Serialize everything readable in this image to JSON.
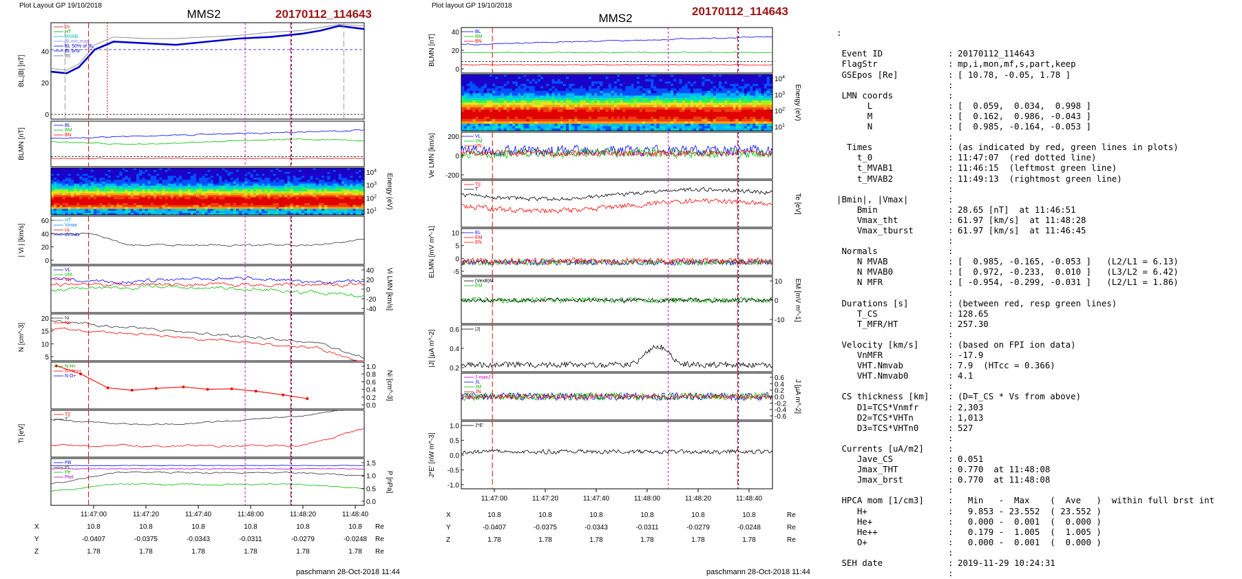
{
  "left_figure": {
    "header": "Plot Layout GP 19/10/2018",
    "spacecraft": "MMS2",
    "event": "20170112_114643",
    "footer": "paschmann 28-Oct-2018 11:44",
    "time_ticks": [
      "11:47:00",
      "11:47:20",
      "11:47:40",
      "11:48:00",
      "11:48:20",
      "11:48:40"
    ],
    "ephemeris": {
      "rows": [
        {
          "name": "X",
          "values": [
            "10.8",
            "10.8",
            "10.8",
            "10.8",
            "10.8",
            "10.8"
          ],
          "unit": "Re"
        },
        {
          "name": "Y",
          "values": [
            "-0.0407",
            "-0.0375",
            "-0.0343",
            "-0.0311",
            "-0.0279",
            "-0.0248"
          ],
          "unit": "Re"
        },
        {
          "name": "Z",
          "values": [
            "1.78",
            "1.78",
            "1.78",
            "1.78",
            "1.78",
            "1.78"
          ],
          "unit": "Re"
        }
      ]
    }
  },
  "right_figure": {
    "header": "Plot layout GP 19/10/2018",
    "spacecraft": "MMS2",
    "event": "20170112_114643",
    "footer": "paschmann 28-Oct-2018 11:44",
    "time_ticks": [
      "11:47:00",
      "11:47:20",
      "11:47:40",
      "11:48:00",
      "11:48:20",
      "11:48:40"
    ],
    "ephemeris": {
      "rows": [
        {
          "name": "X",
          "values": [
            "10.8",
            "10.8",
            "10.8",
            "10.8",
            "10.8",
            "10.8"
          ],
          "unit": "Re"
        },
        {
          "name": "Y",
          "values": [
            "-0.0407",
            "-0.0375",
            "-0.0343",
            "-0.0311",
            "-0.0279",
            "-0.0248"
          ],
          "unit": "Re"
        },
        {
          "name": "Z",
          "values": [
            "1.78",
            "1.78",
            "1.78",
            "1.78",
            "1.78",
            "1.78"
          ],
          "unit": "Re"
        }
      ]
    }
  },
  "chart_data": [
    {
      "id": "L1",
      "type": "line",
      "ylabel": "BL,|B| [nT]",
      "ylim": [
        -3,
        58
      ],
      "yticks": [
        "0",
        "20",
        "40"
      ],
      "legend": [
        "cs",
        "HT",
        "MVAB",
        "BLmin,max",
        "BL 50% of BL",
        "BL brst",
        "|B|"
      ],
      "series": [
        {
          "name": "|B|",
          "color": "#888888",
          "x": [
            0,
            0.05,
            0.09,
            0.14,
            0.2,
            0.3,
            0.4,
            0.5,
            0.6,
            0.7,
            0.8,
            0.86,
            0.92,
            1.0
          ],
          "y": [
            29,
            28,
            32,
            44,
            49,
            48,
            48,
            49,
            50,
            52,
            53,
            55,
            57,
            56
          ]
        },
        {
          "name": "BL brst",
          "color": "#0000cc",
          "x": [
            0,
            0.05,
            0.09,
            0.14,
            0.2,
            0.3,
            0.4,
            0.5,
            0.6,
            0.7,
            0.8,
            0.86,
            0.92,
            1.0
          ],
          "y": [
            27,
            26,
            30,
            41,
            46,
            45,
            44,
            46,
            48,
            49,
            51,
            53,
            56,
            54
          ]
        }
      ]
    },
    {
      "id": "L2",
      "type": "line",
      "ylabel": "BLMN [nT]",
      "legend": [
        "BL",
        "BM",
        "BN"
      ]
    },
    {
      "id": "L3",
      "type": "heatmap",
      "ylabel": "Energy (eV)",
      "yticks": [
        "10^4",
        "10^3",
        "10^2",
        "10^1"
      ]
    },
    {
      "id": "L4",
      "type": "line",
      "ylabel": "| Vi | [km/s]",
      "yticks": [
        "0",
        "20",
        "40",
        "60"
      ],
      "legend": [
        "HT",
        "Vmax",
        "cs",
        "dVmax"
      ]
    },
    {
      "id": "L5",
      "type": "line",
      "ylabel": "Vi LMN [km/s]",
      "yticks": [
        "40",
        "20",
        "0",
        "-20",
        "-40"
      ],
      "legend": [
        "VL",
        "VM",
        "VN"
      ]
    },
    {
      "id": "L6",
      "type": "line",
      "ylabel": "N [cm^-3]",
      "yticks": [
        "20",
        "15",
        "10",
        "5"
      ],
      "legend": [
        "Ni",
        "Ne"
      ]
    },
    {
      "id": "L7",
      "type": "line",
      "ylabel": "Ni [cm^-3]",
      "yticks": [
        "1.0",
        "0.8",
        "0.6",
        "0.4",
        "0.2",
        "0.0"
      ],
      "legend": [
        "N H+",
        "N He++",
        "N O+"
      ],
      "series": [
        {
          "name": "N He++",
          "color": "#ff0000",
          "x": [
            0,
            0.08,
            0.17,
            0.25,
            0.33,
            0.42,
            0.5,
            0.58,
            0.66,
            0.75,
            0.83
          ],
          "y": [
            0.92,
            0.75,
            0.45,
            0.4,
            0.44,
            0.47,
            0.42,
            0.43,
            0.38,
            0.3,
            0.22
          ]
        }
      ]
    },
    {
      "id": "L8",
      "type": "line",
      "ylabel": "Ti [eV]",
      "legend": [
        "T||",
        "T"
      ]
    },
    {
      "id": "L9",
      "type": "line",
      "ylabel": "P [nPa]",
      "yticks": [
        "1.5",
        "1.0",
        "0.5",
        "0.0"
      ],
      "legend": [
        "PB",
        "Pi",
        "Pe",
        "Ptot"
      ]
    },
    {
      "id": "R1",
      "type": "line",
      "ylabel": "BLMN [nT]",
      "yticks": [
        "40",
        "20",
        "0"
      ],
      "legend": [
        "BL",
        "BM",
        "BN"
      ]
    },
    {
      "id": "R2",
      "type": "heatmap",
      "ylabel": "Energy (eV)",
      "yticks": [
        "10^4",
        "10^3",
        "10^2",
        "10^1"
      ]
    },
    {
      "id": "R3",
      "type": "line",
      "ylabel": "Ve LMN [km/s]",
      "yticks": [
        "200",
        "0",
        "-200"
      ],
      "legend": [
        "VL",
        "VM",
        "VN"
      ]
    },
    {
      "id": "R4",
      "type": "line",
      "ylabel": "Te [eV]",
      "legend": [
        "T||",
        "T"
      ]
    },
    {
      "id": "R5",
      "type": "line",
      "ylabel": "ELMN [mV m^-1]",
      "yticks": [
        "10",
        "5",
        "0",
        "-5"
      ],
      "legend": [
        "EL",
        "EM",
        "EN"
      ]
    },
    {
      "id": "R6",
      "type": "line",
      "ylabel": "EM [mV m^-1]",
      "yticks": [
        "10",
        "0",
        "-10"
      ],
      "legend": [
        "(VexB)M",
        "EM"
      ]
    },
    {
      "id": "R7",
      "type": "line",
      "ylabel": "|J| [µA m^-2]",
      "yticks": [
        "0.6",
        "0.4",
        "0.2"
      ],
      "legend": [
        "|J|"
      ]
    },
    {
      "id": "R8",
      "type": "line",
      "ylabel": "J [µA m^-2]",
      "yticks": [
        "0.6",
        "0.4",
        "0.2",
        "0.0",
        "-0.2",
        "-0.4",
        "-0.6"
      ],
      "legend": [
        "J maxJ",
        "JL",
        "JM",
        "JN"
      ]
    },
    {
      "id": "R9",
      "type": "line",
      "ylabel": "J*E' [nW m^-3]",
      "yticks": [
        "1.0",
        "0.5",
        "0.0",
        "-0.5",
        "-1.0"
      ],
      "legend": [
        "J*E'"
      ]
    }
  ],
  "summary": {
    "lead": ":",
    "rows": [
      {
        "k": " Event ID",
        "v": "20170112_114643"
      },
      {
        "k": " FlagStr",
        "v": "mp,i,mon,mf,s,part,keep"
      },
      {
        "k": " GSEpos [Re]",
        "v": "[ 10.78, -0.05, 1.78 ]"
      },
      {
        "k": "",
        "v": ""
      },
      {
        "k": " LMN coords",
        "v": ""
      },
      {
        "k": "      L",
        "v": "[  0.059,  0.034,  0.998 ]"
      },
      {
        "k": "      M",
        "v": "[  0.162,  0.986, -0.043 ]"
      },
      {
        "k": "      N",
        "v": "[  0.985, -0.164, -0.053 ]"
      },
      {
        "k": "",
        "v": ""
      },
      {
        "k": "  Times",
        "v": "(as indicated by red, green lines in plots)"
      },
      {
        "k": "    t_0",
        "v": "11:47:07  (red dotted line)"
      },
      {
        "k": "    t_MVAB1",
        "v": "11:46:15  (leftmost green line)"
      },
      {
        "k": "    t_MVAB2",
        "v": "11:49:13  (rightmost green line)"
      },
      {
        "k": "",
        "v": ""
      },
      {
        "k": "|Bmin|, |Vmax|",
        "v": ""
      },
      {
        "k": "    Bmin",
        "v": "28.65 [nT]  at 11:46:51"
      },
      {
        "k": "    Vmax_tht",
        "v": "61.97 [km/s]  at 11:48:28"
      },
      {
        "k": "    Vmax_tburst",
        "v": "61.97 [km/s]  at 11:46:45"
      },
      {
        "k": "",
        "v": ""
      },
      {
        "k": " Normals",
        "v": ""
      },
      {
        "k": "    N MVAB",
        "v": "[  0.985, -0.165, -0.053 ]   (L2/L1 = 6.13)"
      },
      {
        "k": "    N MVAB0",
        "v": "[  0.972, -0.233,  0.010 ]   (L3/L2 = 6.42)"
      },
      {
        "k": "    N MFR",
        "v": "[ -0.954, -0.299, -0.031 ]   (L2/L1 = 1.86)"
      },
      {
        "k": "",
        "v": ""
      },
      {
        "k": " Durations [s]",
        "v": "(between red, resp green lines)"
      },
      {
        "k": "    T_CS",
        "v": "128.65"
      },
      {
        "k": "    T_MFR/HT",
        "v": "257.30"
      },
      {
        "k": "",
        "v": ""
      },
      {
        "k": " Velocity [km/s]",
        "v": "(based on FPI ion data)"
      },
      {
        "k": "    VnMFR",
        "v": "-17.9"
      },
      {
        "k": "    VHT.Nmvab",
        "v": "7.9  (HTcc = 0.366)"
      },
      {
        "k": "    VHT.Nmvab0",
        "v": "4.1"
      },
      {
        "k": "",
        "v": ""
      },
      {
        "k": " CS thickness [km]",
        "v": "(D=T_CS * Vs from above)"
      },
      {
        "k": "    D1=TCS*Vnmfr",
        "v": "2,303"
      },
      {
        "k": "    D2=TCS*VHTn",
        "v": "1,013"
      },
      {
        "k": "    D3=TCS*VHTn0",
        "v": "527"
      },
      {
        "k": "",
        "v": ""
      },
      {
        "k": " Currents [uA/m2]",
        "v": ""
      },
      {
        "k": "    Jave_CS",
        "v": "0.051"
      },
      {
        "k": "    Jmax_THT",
        "v": "0.770  at 11:48:08"
      },
      {
        "k": "    Jmax_brst",
        "v": "0.770  at 11:48:08"
      },
      {
        "k": "",
        "v": ""
      },
      {
        "k": " HPCA mom [1/cm3]",
        "v": "  Min   -  Max    (  Ave   )  within full brst int"
      },
      {
        "k": "    H+",
        "v": "  9.853 - 23.552  ( 23.552 )"
      },
      {
        "k": "    He+",
        "v": "  0.000 -  0.001  (  0.000 )"
      },
      {
        "k": "    He++",
        "v": "  0.179 -  1.005  (  1.005 )"
      },
      {
        "k": "    O+",
        "v": "  0.000 -  0.001  (  0.000 )"
      },
      {
        "k": "",
        "v": ""
      },
      {
        "k": " SEH date",
        "v": "2019-11-29 10:24:31"
      },
      {
        "k": "",
        "v": ""
      }
    ]
  }
}
